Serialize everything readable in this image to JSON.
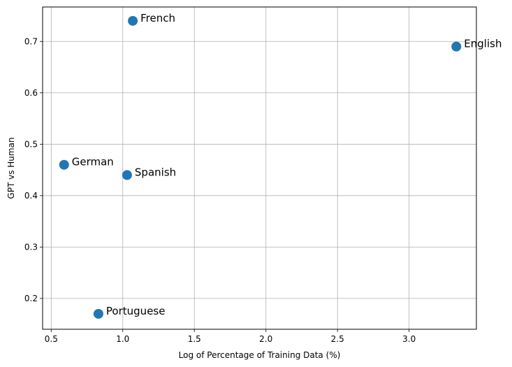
{
  "chart_data": {
    "type": "scatter",
    "title": "",
    "xlabel": "Log of Percentage of Training Data (%)",
    "ylabel": "GPT vs Human",
    "xlim": [
      0.44,
      3.47
    ],
    "ylim": [
      0.14,
      0.767
    ],
    "xticks": [
      0.5,
      1.0,
      1.5,
      2.0,
      2.5,
      3.0
    ],
    "xtick_labels": [
      "0.5",
      "1.0",
      "1.5",
      "2.0",
      "2.5",
      "3.0"
    ],
    "yticks": [
      0.2,
      0.3,
      0.4,
      0.5,
      0.6,
      0.7
    ],
    "ytick_labels": [
      "0.2",
      "0.3",
      "0.4",
      "0.5",
      "0.6",
      "0.7"
    ],
    "grid": true,
    "marker_color": "#1f77b4",
    "points": [
      {
        "label": "English",
        "x": 3.33,
        "y": 0.69
      },
      {
        "label": "French",
        "x": 1.07,
        "y": 0.74
      },
      {
        "label": "German",
        "x": 0.59,
        "y": 0.46
      },
      {
        "label": "Spanish",
        "x": 1.03,
        "y": 0.44
      },
      {
        "label": "Portuguese",
        "x": 0.83,
        "y": 0.17
      }
    ]
  }
}
